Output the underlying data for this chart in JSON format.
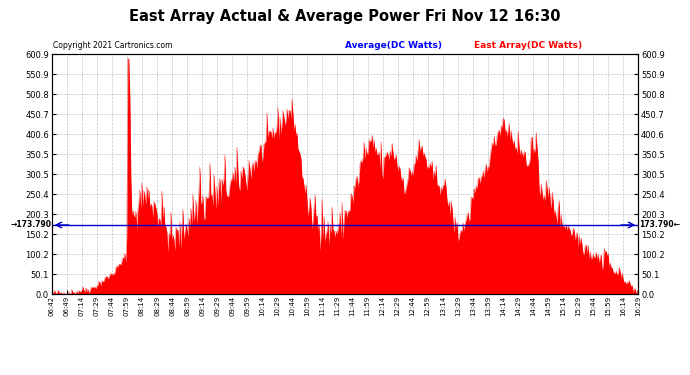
{
  "title": "East Array Actual & Average Power Fri Nov 12 16:30",
  "copyright_text": "Copyright 2021 Cartronics.com",
  "legend_avg_label": "Average(DC Watts)",
  "legend_east_label": "East Array(DC Watts)",
  "avg_line_value": 173.79,
  "avg_label": "173.790",
  "ymin": 0.0,
  "ymax": 600.9,
  "yticks": [
    0.0,
    50.1,
    100.2,
    150.2,
    200.3,
    250.4,
    300.5,
    350.5,
    400.6,
    450.7,
    500.8,
    550.9,
    600.9
  ],
  "background_color": "#ffffff",
  "plot_bg_color": "#ffffff",
  "grid_color": "#aaaaaa",
  "fill_color": "#ff0000",
  "line_color": "#ff0000",
  "avg_line_color": "#0000cc",
  "title_color": "#000000",
  "copyright_color": "#000000",
  "legend_avg_color": "#0000ff",
  "legend_east_color": "#ff0000",
  "x_tick_labels": [
    "06:42",
    "06:49",
    "07:14",
    "07:29",
    "07:44",
    "07:59",
    "08:14",
    "08:29",
    "08:44",
    "08:59",
    "09:14",
    "09:29",
    "09:44",
    "09:59",
    "10:14",
    "10:29",
    "10:44",
    "10:59",
    "11:14",
    "11:29",
    "11:44",
    "11:59",
    "12:14",
    "12:29",
    "12:44",
    "12:59",
    "13:14",
    "13:29",
    "13:44",
    "13:59",
    "14:14",
    "14:29",
    "14:44",
    "14:59",
    "15:14",
    "15:29",
    "15:44",
    "15:59",
    "16:14",
    "16:29"
  ]
}
